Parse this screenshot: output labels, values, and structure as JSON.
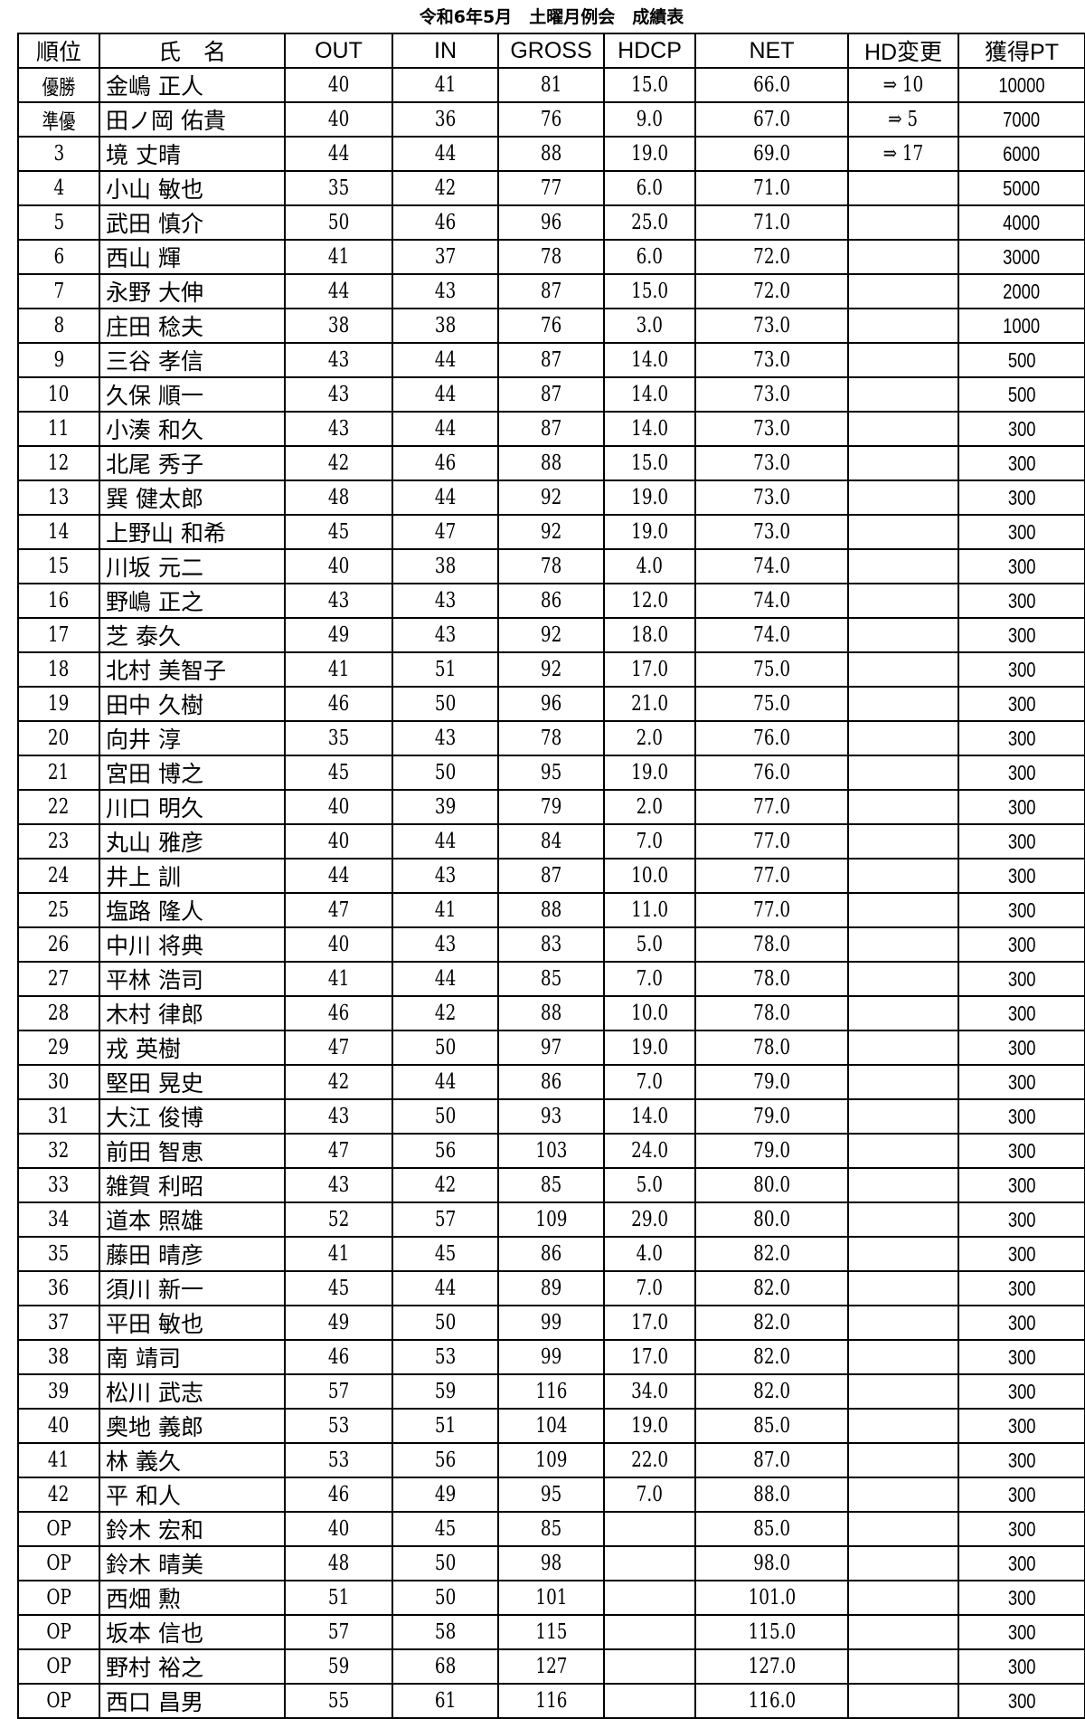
{
  "title": "令和6年5月　土曜月例会　成績表",
  "headers": [
    "順位",
    "氏　名",
    "OUT",
    "IN",
    "GROSS",
    "HDCP",
    "NET",
    "HD変更",
    "獲得PT"
  ],
  "rows": [
    [
      "優勝",
      "金嶋 正人",
      "40",
      "41",
      "81",
      "15.0",
      "66.0",
      "⇒ 10",
      "10000"
    ],
    [
      "準優",
      "田ノ岡 佑貴",
      "40",
      "36",
      "76",
      "9.0",
      "67.0",
      "⇒ 5",
      "7000"
    ],
    [
      "3",
      "境 丈晴",
      "44",
      "44",
      "88",
      "19.0",
      "69.0",
      "⇒ 17",
      "6000"
    ],
    [
      "4",
      "小山 敏也",
      "35",
      "42",
      "77",
      "6.0",
      "71.0",
      "",
      "5000"
    ],
    [
      "5",
      "武田 慎介",
      "50",
      "46",
      "96",
      "25.0",
      "71.0",
      "",
      "4000"
    ],
    [
      "6",
      "西山 輝",
      "41",
      "37",
      "78",
      "6.0",
      "72.0",
      "",
      "3000"
    ],
    [
      "7",
      "永野 大伸",
      "44",
      "43",
      "87",
      "15.0",
      "72.0",
      "",
      "2000"
    ],
    [
      "8",
      "庄田 稔夫",
      "38",
      "38",
      "76",
      "3.0",
      "73.0",
      "",
      "1000"
    ],
    [
      "9",
      "三谷 孝信",
      "43",
      "44",
      "87",
      "14.0",
      "73.0",
      "",
      "500"
    ],
    [
      "10",
      "久保 順一",
      "43",
      "44",
      "87",
      "14.0",
      "73.0",
      "",
      "500"
    ],
    [
      "11",
      "小湊 和久",
      "43",
      "44",
      "87",
      "14.0",
      "73.0",
      "",
      "300"
    ],
    [
      "12",
      "北尾 秀子",
      "42",
      "46",
      "88",
      "15.0",
      "73.0",
      "",
      "300"
    ],
    [
      "13",
      "巽 健太郎",
      "48",
      "44",
      "92",
      "19.0",
      "73.0",
      "",
      "300"
    ],
    [
      "14",
      "上野山 和希",
      "45",
      "47",
      "92",
      "19.0",
      "73.0",
      "",
      "300"
    ],
    [
      "15",
      "川坂 元二",
      "40",
      "38",
      "78",
      "4.0",
      "74.0",
      "",
      "300"
    ],
    [
      "16",
      "野嶋 正之",
      "43",
      "43",
      "86",
      "12.0",
      "74.0",
      "",
      "300"
    ],
    [
      "17",
      "芝 泰久",
      "49",
      "43",
      "92",
      "18.0",
      "74.0",
      "",
      "300"
    ],
    [
      "18",
      "北村 美智子",
      "41",
      "51",
      "92",
      "17.0",
      "75.0",
      "",
      "300"
    ],
    [
      "19",
      "田中 久樹",
      "46",
      "50",
      "96",
      "21.0",
      "75.0",
      "",
      "300"
    ],
    [
      "20",
      "向井 淳",
      "35",
      "43",
      "78",
      "2.0",
      "76.0",
      "",
      "300"
    ],
    [
      "21",
      "宮田 博之",
      "45",
      "50",
      "95",
      "19.0",
      "76.0",
      "",
      "300"
    ],
    [
      "22",
      "川口 明久",
      "40",
      "39",
      "79",
      "2.0",
      "77.0",
      "",
      "300"
    ],
    [
      "23",
      "丸山 雅彦",
      "40",
      "44",
      "84",
      "7.0",
      "77.0",
      "",
      "300"
    ],
    [
      "24",
      "井上 訓",
      "44",
      "43",
      "87",
      "10.0",
      "77.0",
      "",
      "300"
    ],
    [
      "25",
      "塩路 隆人",
      "47",
      "41",
      "88",
      "11.0",
      "77.0",
      "",
      "300"
    ],
    [
      "26",
      "中川 将典",
      "40",
      "43",
      "83",
      "5.0",
      "78.0",
      "",
      "300"
    ],
    [
      "27",
      "平林 浩司",
      "41",
      "44",
      "85",
      "7.0",
      "78.0",
      "",
      "300"
    ],
    [
      "28",
      "木村 律郎",
      "46",
      "42",
      "88",
      "10.0",
      "78.0",
      "",
      "300"
    ],
    [
      "29",
      "戎 英樹",
      "47",
      "50",
      "97",
      "19.0",
      "78.0",
      "",
      "300"
    ],
    [
      "30",
      "堅田 晃史",
      "42",
      "44",
      "86",
      "7.0",
      "79.0",
      "",
      "300"
    ],
    [
      "31",
      "大江 俊博",
      "43",
      "50",
      "93",
      "14.0",
      "79.0",
      "",
      "300"
    ],
    [
      "32",
      "前田 智恵",
      "47",
      "56",
      "103",
      "24.0",
      "79.0",
      "",
      "300"
    ],
    [
      "33",
      "雑賀 利昭",
      "43",
      "42",
      "85",
      "5.0",
      "80.0",
      "",
      "300"
    ],
    [
      "34",
      "道本 照雄",
      "52",
      "57",
      "109",
      "29.0",
      "80.0",
      "",
      "300"
    ],
    [
      "35",
      "藤田 晴彦",
      "41",
      "45",
      "86",
      "4.0",
      "82.0",
      "",
      "300"
    ],
    [
      "36",
      "須川 新一",
      "45",
      "44",
      "89",
      "7.0",
      "82.0",
      "",
      "300"
    ],
    [
      "37",
      "平田 敏也",
      "49",
      "50",
      "99",
      "17.0",
      "82.0",
      "",
      "300"
    ],
    [
      "38",
      "南 靖司",
      "46",
      "53",
      "99",
      "17.0",
      "82.0",
      "",
      "300"
    ],
    [
      "39",
      "松川 武志",
      "57",
      "59",
      "116",
      "34.0",
      "82.0",
      "",
      "300"
    ],
    [
      "40",
      "奥地 義郎",
      "53",
      "51",
      "104",
      "19.0",
      "85.0",
      "",
      "300"
    ],
    [
      "41",
      "林 義久",
      "53",
      "56",
      "109",
      "22.0",
      "87.0",
      "",
      "300"
    ],
    [
      "42",
      "平 和人",
      "46",
      "49",
      "95",
      "7.0",
      "88.0",
      "",
      "300"
    ],
    [
      "OP",
      "鈴木 宏和",
      "40",
      "45",
      "85",
      "",
      "85.0",
      "",
      "300"
    ],
    [
      "OP",
      "鈴木 晴美",
      "48",
      "50",
      "98",
      "",
      "98.0",
      "",
      "300"
    ],
    [
      "OP",
      "西畑 勲",
      "51",
      "50",
      "101",
      "",
      "101.0",
      "",
      "300"
    ],
    [
      "OP",
      "坂本 信也",
      "57",
      "58",
      "115",
      "",
      "115.0",
      "",
      "300"
    ],
    [
      "OP",
      "野村 裕之",
      "59",
      "68",
      "127",
      "",
      "127.0",
      "",
      "300"
    ],
    [
      "OP",
      "西口 昌男",
      "55",
      "61",
      "116",
      "",
      "116.0",
      "",
      "300"
    ]
  ]
}
